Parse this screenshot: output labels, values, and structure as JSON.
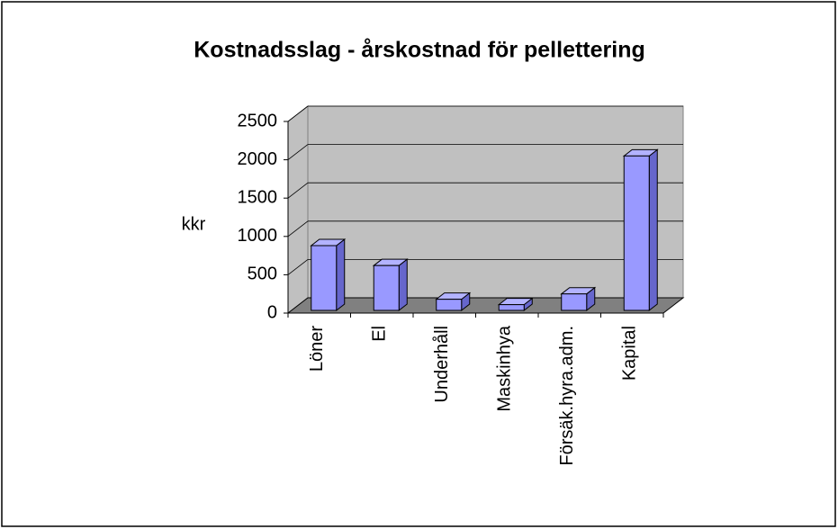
{
  "chart_data": {
    "type": "bar3d",
    "title": "Kostnadsslag - årskostnad för pellettering",
    "y_label": "kkr",
    "categories": [
      "Löner",
      "El",
      "Underhåll",
      "Maskinhya",
      "Försäk.hyra.adm.",
      "Kapital"
    ],
    "values": [
      880,
      620,
      180,
      110,
      250,
      2050
    ],
    "color": "#9999ff",
    "wall_color": "#c0c0c0",
    "floor_color": "#808080",
    "ylim": [
      0,
      2500
    ],
    "yticks": [
      0,
      500,
      1000,
      1500,
      2000,
      2500
    ],
    "grid": true
  }
}
